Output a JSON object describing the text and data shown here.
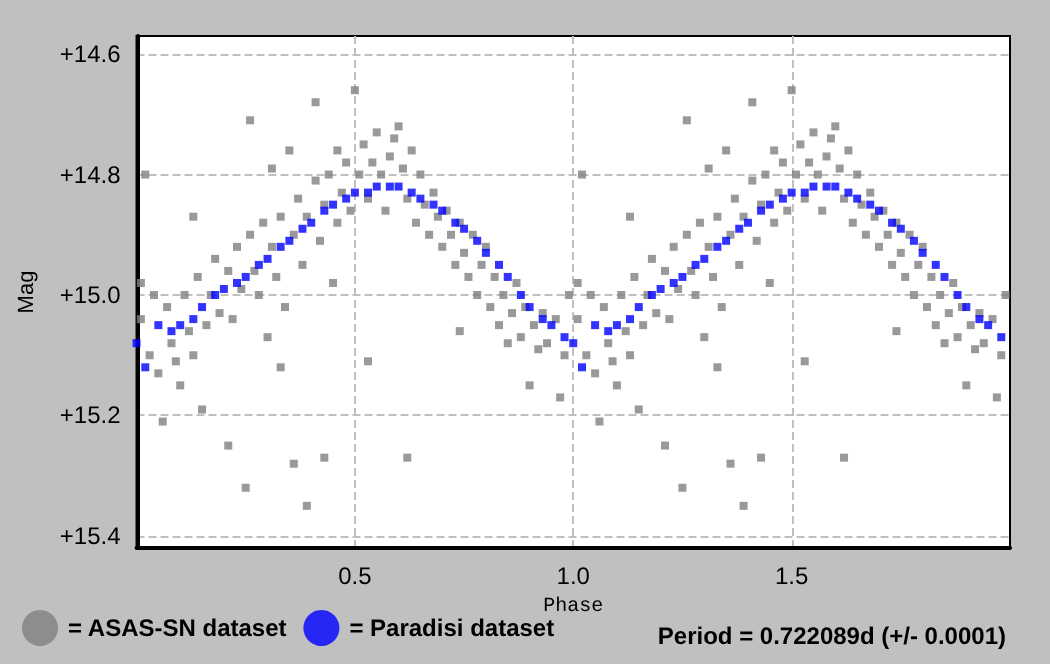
{
  "chart_data": {
    "type": "scatter",
    "xlabel": "Phase",
    "ylabel": "Mag",
    "xlim": [
      0,
      2
    ],
    "ylim": [
      15.42,
      14.57
    ],
    "xticks": [
      0.5,
      {
        "value": 1,
        "label": "1.0"
      },
      1.5
    ],
    "yticks": [
      {
        "value": 14.6,
        "label": "+14.6"
      },
      {
        "value": 14.8,
        "label": "+14.8"
      },
      {
        "value": 15.0,
        "label": "+15.0"
      },
      {
        "value": 15.2,
        "label": "+15.2"
      },
      {
        "value": 15.4,
        "label": "+15.4"
      }
    ],
    "grid": true,
    "legend": "bottom",
    "marker": "square",
    "annotations": [
      "Period = 0.722089d (+/- 0.0001)"
    ],
    "series": [
      {
        "name": "= ASAS-SN dataset",
        "color": "#808080",
        "x": [
          0.41,
          0.5,
          0.26,
          0.35,
          0.31,
          0.6,
          0.02,
          0.13,
          0.46,
          0.36,
          0.43,
          0.62,
          0.25,
          0.21,
          0.39,
          0.06,
          0.15,
          0.1,
          0.33,
          0.53,
          0.74,
          0.9,
          0.92,
          0.85,
          0.97,
          0.3,
          0.45,
          0.01,
          0.01,
          0.03,
          0.04,
          0.05,
          0.07,
          0.08,
          0.09,
          0.11,
          0.12,
          0.13,
          0.14,
          0.16,
          0.17,
          0.18,
          0.19,
          0.21,
          0.22,
          0.23,
          0.24,
          0.26,
          0.27,
          0.28,
          0.29,
          0.31,
          0.32,
          0.33,
          0.34,
          0.36,
          0.37,
          0.38,
          0.39,
          0.41,
          0.42,
          0.43,
          0.44,
          0.46,
          0.47,
          0.48,
          0.49,
          0.51,
          0.52,
          0.53,
          0.54,
          0.55,
          0.56,
          0.57,
          0.58,
          0.59,
          0.61,
          0.62,
          0.63,
          0.64,
          0.65,
          0.66,
          0.67,
          0.68,
          0.69,
          0.7,
          0.71,
          0.72,
          0.73,
          0.74,
          0.75,
          0.76,
          0.77,
          0.78,
          0.79,
          0.8,
          0.81,
          0.82,
          0.83,
          0.84,
          0.86,
          0.87,
          0.88,
          0.89,
          0.91,
          0.93,
          0.94,
          0.96,
          0.98,
          0.99,
          1.41,
          1.5,
          1.26,
          1.35,
          1.31,
          1.6,
          1.02,
          1.13,
          1.46,
          1.36,
          1.43,
          1.62,
          1.25,
          1.21,
          1.39,
          1.06,
          1.15,
          1.1,
          1.33,
          1.53,
          1.74,
          1.9,
          1.92,
          1.85,
          1.97,
          1.3,
          1.45,
          1.01,
          1.01,
          1.03,
          1.04,
          1.05,
          1.07,
          1.08,
          1.09,
          1.11,
          1.12,
          1.13,
          1.14,
          1.16,
          1.17,
          1.18,
          1.19,
          1.21,
          1.22,
          1.23,
          1.24,
          1.26,
          1.27,
          1.28,
          1.29,
          1.31,
          1.32,
          1.33,
          1.34,
          1.36,
          1.37,
          1.38,
          1.39,
          1.41,
          1.42,
          1.43,
          1.44,
          1.46,
          1.47,
          1.48,
          1.49,
          1.51,
          1.52,
          1.53,
          1.54,
          1.55,
          1.56,
          1.57,
          1.58,
          1.59,
          1.61,
          1.62,
          1.63,
          1.64,
          1.65,
          1.66,
          1.67,
          1.68,
          1.69,
          1.7,
          1.71,
          1.72,
          1.73,
          1.74,
          1.75,
          1.76,
          1.77,
          1.78,
          1.79,
          1.8,
          1.81,
          1.82,
          1.83,
          1.84,
          1.86,
          1.87,
          1.88,
          1.89,
          1.91,
          1.93,
          1.94,
          1.96,
          1.98,
          1.99
        ],
        "values": [
          14.68,
          14.66,
          14.71,
          14.76,
          14.79,
          14.72,
          14.8,
          14.87,
          14.76,
          15.28,
          15.27,
          15.27,
          15.32,
          15.25,
          15.35,
          15.21,
          15.19,
          15.15,
          15.12,
          15.11,
          15.06,
          15.15,
          15.09,
          15.08,
          15.17,
          15.07,
          14.98,
          15.04,
          14.98,
          15.1,
          15.0,
          15.13,
          15.02,
          15.08,
          15.11,
          15.0,
          15.06,
          15.1,
          14.97,
          15.05,
          15.0,
          14.94,
          15.03,
          14.96,
          15.04,
          14.92,
          14.99,
          14.9,
          14.96,
          15.0,
          14.88,
          14.92,
          14.97,
          14.87,
          15.02,
          14.9,
          14.84,
          14.95,
          14.87,
          14.81,
          14.91,
          14.85,
          14.8,
          14.88,
          14.83,
          14.78,
          14.86,
          14.8,
          14.75,
          14.84,
          14.78,
          14.73,
          14.8,
          14.86,
          14.77,
          14.74,
          14.79,
          14.84,
          14.76,
          14.88,
          14.8,
          14.85,
          14.9,
          14.83,
          14.87,
          14.92,
          14.86,
          14.9,
          14.95,
          14.88,
          14.93,
          14.97,
          14.9,
          15.0,
          14.95,
          14.92,
          15.02,
          14.97,
          15.05,
          15.0,
          15.03,
          14.98,
          15.07,
          15.02,
          15.05,
          15.03,
          15.08,
          15.04,
          15.1,
          15.0,
          14.68,
          14.66,
          14.71,
          14.76,
          14.79,
          14.72,
          14.8,
          14.87,
          14.76,
          15.28,
          15.27,
          15.27,
          15.32,
          15.25,
          15.35,
          15.21,
          15.19,
          15.15,
          15.12,
          15.11,
          15.06,
          15.15,
          15.09,
          15.08,
          15.17,
          15.07,
          14.98,
          15.04,
          14.98,
          15.1,
          15.0,
          15.13,
          15.02,
          15.08,
          15.11,
          15.0,
          15.06,
          15.1,
          14.97,
          15.05,
          15.0,
          14.94,
          15.03,
          14.96,
          15.04,
          14.92,
          14.99,
          14.9,
          14.96,
          15.0,
          14.88,
          14.92,
          14.97,
          14.87,
          15.02,
          14.9,
          14.84,
          14.95,
          14.87,
          14.81,
          14.91,
          14.85,
          14.8,
          14.88,
          14.83,
          14.78,
          14.86,
          14.8,
          14.75,
          14.84,
          14.78,
          14.73,
          14.8,
          14.86,
          14.77,
          14.74,
          14.79,
          14.84,
          14.76,
          14.88,
          14.8,
          14.85,
          14.9,
          14.83,
          14.87,
          14.92,
          14.86,
          14.9,
          14.95,
          14.88,
          14.93,
          14.97,
          14.9,
          15.0,
          14.95,
          14.92,
          15.02,
          14.97,
          15.05,
          15.0,
          15.03,
          14.98,
          15.07,
          15.02,
          15.05,
          15.03,
          15.08,
          15.04,
          15.1,
          15.0
        ]
      },
      {
        "name": "= Paradisi dataset",
        "color": "#0000ff",
        "x": [
          0.0,
          0.02,
          0.05,
          0.08,
          0.1,
          0.13,
          0.15,
          0.18,
          0.2,
          0.23,
          0.25,
          0.28,
          0.3,
          0.33,
          0.35,
          0.38,
          0.4,
          0.43,
          0.45,
          0.48,
          0.5,
          0.53,
          0.55,
          0.58,
          0.6,
          0.63,
          0.65,
          0.68,
          0.7,
          0.73,
          0.75,
          0.78,
          0.8,
          0.83,
          0.85,
          0.88,
          0.9,
          0.93,
          0.95,
          0.98,
          1.0,
          1.02,
          1.05,
          1.08,
          1.1,
          1.13,
          1.15,
          1.18,
          1.2,
          1.23,
          1.25,
          1.28,
          1.3,
          1.33,
          1.35,
          1.38,
          1.4,
          1.43,
          1.45,
          1.48,
          1.5,
          1.53,
          1.55,
          1.58,
          1.6,
          1.63,
          1.65,
          1.68,
          1.7,
          1.73,
          1.75,
          1.78,
          1.8,
          1.83,
          1.85,
          1.88,
          1.9,
          1.93,
          1.95,
          1.98
        ],
        "values": [
          15.08,
          15.12,
          15.05,
          15.06,
          15.05,
          15.04,
          15.02,
          15.0,
          14.99,
          14.98,
          14.97,
          14.95,
          14.94,
          14.92,
          14.91,
          14.89,
          14.88,
          14.86,
          14.85,
          14.84,
          14.83,
          14.83,
          14.82,
          14.82,
          14.82,
          14.83,
          14.84,
          14.85,
          14.86,
          14.88,
          14.89,
          14.91,
          14.93,
          14.95,
          14.97,
          15.0,
          15.02,
          15.04,
          15.05,
          15.07,
          15.08,
          15.12,
          15.05,
          15.06,
          15.05,
          15.04,
          15.02,
          15.0,
          14.99,
          14.98,
          14.97,
          14.95,
          14.94,
          14.92,
          14.91,
          14.89,
          14.88,
          14.86,
          14.85,
          14.84,
          14.83,
          14.83,
          14.82,
          14.82,
          14.82,
          14.83,
          14.84,
          14.85,
          14.86,
          14.88,
          14.89,
          14.91,
          14.93,
          14.95,
          14.97,
          15.0,
          15.02,
          15.04,
          15.05,
          15.07
        ]
      }
    ]
  }
}
